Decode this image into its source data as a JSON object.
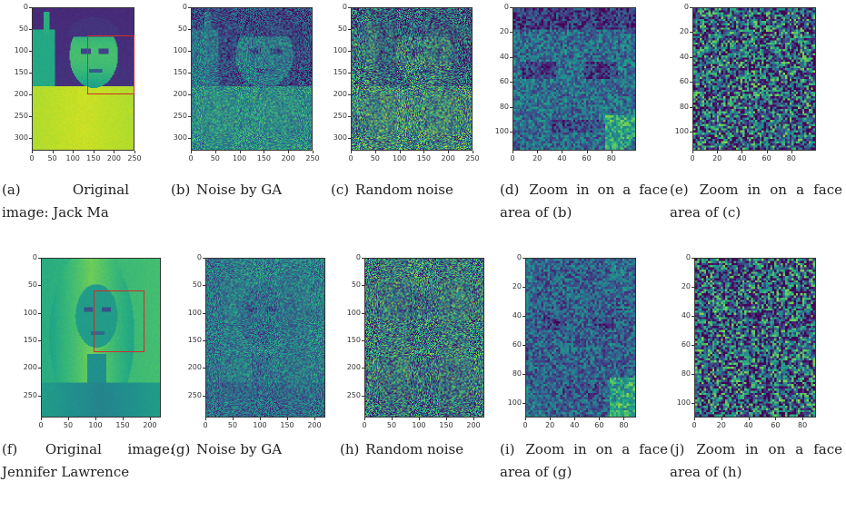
{
  "panels": [
    {
      "id": "a",
      "kind": "photo",
      "tone": "ma",
      "label": "(a)",
      "caption": "Original image: Jack Ma",
      "xticks": [
        "0",
        "50",
        "100",
        "150",
        "200",
        "250"
      ],
      "yticks": [
        "0",
        "50",
        "100",
        "150",
        "200",
        "250",
        "300"
      ]
    },
    {
      "id": "b",
      "kind": "ga",
      "tone": "ma",
      "label": "(b)",
      "caption": "Noise by GA",
      "xticks": [
        "0",
        "50",
        "100",
        "150",
        "200",
        "250"
      ],
      "yticks": [
        "0",
        "50",
        "100",
        "150",
        "200",
        "250",
        "300"
      ]
    },
    {
      "id": "c",
      "kind": "rand",
      "tone": "ma",
      "label": "(c)",
      "caption": "Random noise",
      "xticks": [
        "0",
        "50",
        "100",
        "150",
        "200",
        "250"
      ],
      "yticks": [
        "0",
        "50",
        "100",
        "150",
        "200",
        "250",
        "300"
      ]
    },
    {
      "id": "d",
      "kind": "zoomga",
      "tone": "ma",
      "label": "(d)",
      "caption": "Zoom in on a face area of (b)",
      "xticks": [
        "0",
        "20",
        "40",
        "60",
        "80"
      ],
      "yticks": [
        "0",
        "20",
        "40",
        "60",
        "80",
        "100"
      ]
    },
    {
      "id": "e",
      "kind": "zoomrand",
      "tone": "ma",
      "label": "(e)",
      "caption": "Zoom in on a face area of (c)",
      "xticks": [
        "0",
        "20",
        "40",
        "60",
        "80"
      ],
      "yticks": [
        "0",
        "20",
        "40",
        "60",
        "80",
        "100"
      ]
    },
    {
      "id": "f",
      "kind": "photo",
      "tone": "jl",
      "label": "(f)",
      "caption": "Original image: Jennifer Lawrence",
      "xticks": [
        "0",
        "50",
        "100",
        "150",
        "200"
      ],
      "yticks": [
        "0",
        "50",
        "100",
        "150",
        "200",
        "250"
      ]
    },
    {
      "id": "g",
      "kind": "ga",
      "tone": "jl",
      "label": "(g)",
      "caption": "Noise by GA",
      "xticks": [
        "0",
        "50",
        "100",
        "150",
        "200"
      ],
      "yticks": [
        "0",
        "50",
        "100",
        "150",
        "200",
        "250"
      ]
    },
    {
      "id": "h",
      "kind": "rand",
      "tone": "jl",
      "label": "(h)",
      "caption": "Random noise",
      "xticks": [
        "0",
        "50",
        "100",
        "150",
        "200"
      ],
      "yticks": [
        "0",
        "50",
        "100",
        "150",
        "200",
        "250"
      ]
    },
    {
      "id": "i",
      "kind": "zoomga",
      "tone": "jl",
      "label": "(i)",
      "caption": "Zoom in on a face area of (g)",
      "xticks": [
        "0",
        "20",
        "40",
        "60",
        "80"
      ],
      "yticks": [
        "0",
        "20",
        "40",
        "60",
        "80",
        "100"
      ]
    },
    {
      "id": "j",
      "kind": "zoomrand",
      "tone": "jl",
      "label": "(j)",
      "caption": "Zoom in on a face area of (h)",
      "xticks": [
        "0",
        "20",
        "40",
        "60",
        "80"
      ],
      "yticks": [
        "0",
        "20",
        "40",
        "60",
        "80",
        "100"
      ]
    }
  ],
  "colormap": "viridis",
  "box_color": "#d12a2a"
}
